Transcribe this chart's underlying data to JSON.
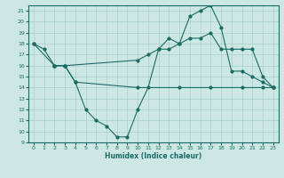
{
  "xlabel": "Humidex (Indice chaleur)",
  "xlim": [
    -0.5,
    23.5
  ],
  "ylim": [
    9,
    21.5
  ],
  "yticks": [
    9,
    10,
    11,
    12,
    13,
    14,
    15,
    16,
    17,
    18,
    19,
    20,
    21
  ],
  "xticks": [
    0,
    1,
    2,
    3,
    4,
    5,
    6,
    7,
    8,
    9,
    10,
    11,
    12,
    13,
    14,
    15,
    16,
    17,
    18,
    19,
    20,
    21,
    22,
    23
  ],
  "bg_color": "#cde8e4",
  "line_color": "#1a6b63",
  "grid_color": "#aacfcb",
  "line1_x": [
    0,
    1,
    2,
    3,
    4,
    5,
    6,
    7,
    8,
    9,
    10,
    11,
    12,
    13,
    14,
    15,
    16,
    17,
    18,
    19,
    20,
    21,
    22,
    23
  ],
  "line1_y": [
    18,
    17.5,
    16,
    16,
    14.5,
    12,
    11,
    10.5,
    9.5,
    9.5,
    12,
    14,
    17.5,
    18.5,
    18,
    20.5,
    21,
    21.5,
    19.5,
    15.5,
    15.5,
    15,
    14.5,
    14
  ],
  "line2_x": [
    0,
    2,
    3,
    10,
    11,
    12,
    13,
    14,
    15,
    16,
    17,
    18,
    19,
    20,
    21,
    22,
    23
  ],
  "line2_y": [
    18,
    16,
    16,
    16.5,
    17,
    17.5,
    17.5,
    18,
    18.5,
    18.5,
    19,
    17.5,
    17.5,
    17.5,
    17.5,
    15,
    14
  ],
  "line3_x": [
    2,
    3,
    4,
    10,
    14,
    17,
    20,
    22,
    23
  ],
  "line3_y": [
    16,
    16,
    14.5,
    14,
    14,
    14,
    14,
    14,
    14
  ]
}
